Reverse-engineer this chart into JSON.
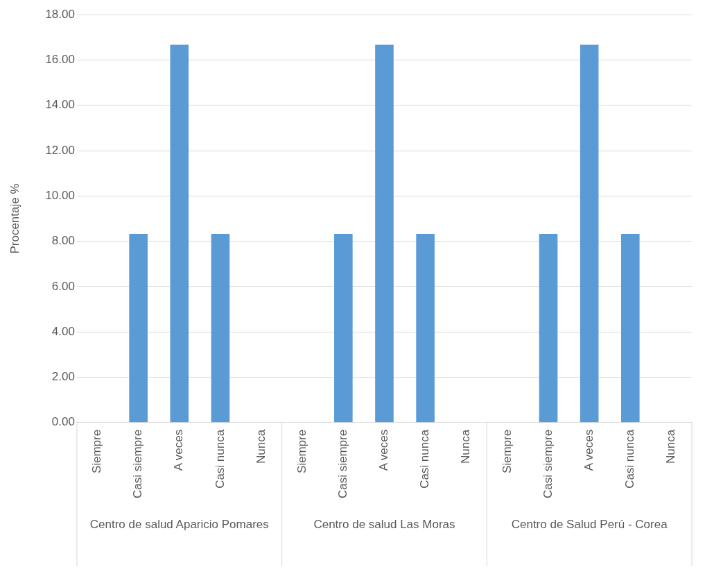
{
  "chart_data": {
    "type": "bar",
    "ylabel": "Procentaje %",
    "categories": [
      "Siempre",
      "Casi siempre",
      "A veces",
      "Casi nunca",
      "Nunca",
      "Siempre",
      "Casi siempre",
      "A veces",
      "Casi nunca",
      "Nunca",
      "Siempre",
      "Casi siempre",
      "A veces",
      "Casi nunca",
      "Nunca"
    ],
    "values": [
      0,
      8.33,
      16.67,
      8.33,
      0,
      0,
      8.33,
      16.67,
      8.33,
      0,
      0,
      8.33,
      16.67,
      8.33,
      0
    ],
    "color": "#5b9bd5",
    "ylim": [
      0,
      18
    ],
    "yticks": [
      {
        "value": 0,
        "label": "0.00"
      },
      {
        "value": 2,
        "label": "2.00"
      },
      {
        "value": 4,
        "label": "4.00"
      },
      {
        "value": 6,
        "label": "6.00"
      },
      {
        "value": 8,
        "label": "8.00"
      },
      {
        "value": 10,
        "label": "10.00"
      },
      {
        "value": 12,
        "label": "12.00"
      },
      {
        "value": 14,
        "label": "14.00"
      },
      {
        "value": 16,
        "label": "16.00"
      },
      {
        "value": 18,
        "label": "18.00"
      }
    ],
    "grid": "y",
    "legend": false,
    "annotations": [
      "Centro de salud Aparicio Pomares",
      "Centro de salud Las Moras",
      "Centro de Salud Perú - Corea"
    ]
  }
}
